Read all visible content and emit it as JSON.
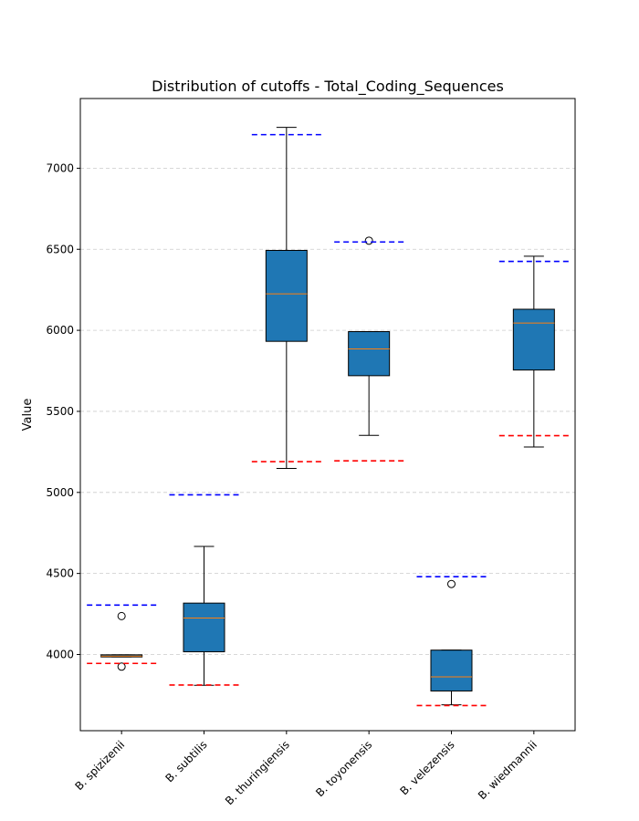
{
  "chart_data": {
    "type": "boxplot",
    "title": "Distribution of cutoffs - Total_Coding_Sequences",
    "xlabel": "",
    "ylabel": "Value",
    "ylim": [
      3530,
      7430
    ],
    "yticks": [
      4000,
      4500,
      5000,
      5500,
      6000,
      6500,
      7000
    ],
    "grid": "y-dashed",
    "colors": {
      "box_fill": "#1f77b4",
      "median": "#ff7f0e",
      "upper_cutoff": "#0000ff",
      "lower_cutoff": "#ff0000",
      "grid": "#cccccc"
    },
    "categories": [
      "B. spizizenii",
      "B. subtilis",
      "B. thuringiensis",
      "B. toyonensis",
      "B. velezensis",
      "B. wiedmannii"
    ],
    "boxes": [
      {
        "q1": 3985,
        "median": 3990,
        "q3": 3998,
        "whisker_low": 3985,
        "whisker_high": 3998,
        "outliers": [
          4237,
          3925
        ],
        "upper_cutoff": 4305,
        "lower_cutoff": 3945
      },
      {
        "q1": 4017,
        "median": 4225,
        "q3": 4317,
        "whisker_low": 3810,
        "whisker_high": 4667,
        "outliers": [],
        "upper_cutoff": 4985,
        "lower_cutoff": 3812
      },
      {
        "q1": 5932,
        "median": 6225,
        "q3": 6493,
        "whisker_low": 5148,
        "whisker_high": 7252,
        "outliers": [],
        "upper_cutoff": 7207,
        "lower_cutoff": 5190
      },
      {
        "q1": 5720,
        "median": 5885,
        "q3": 5992,
        "whisker_low": 5352,
        "whisker_high": 5992,
        "outliers": [
          6553
        ],
        "upper_cutoff": 6545,
        "lower_cutoff": 5195
      },
      {
        "q1": 3775,
        "median": 3862,
        "q3": 4027,
        "whisker_low": 3690,
        "whisker_high": 4027,
        "outliers": [
          4435
        ],
        "upper_cutoff": 4480,
        "lower_cutoff": 3685
      },
      {
        "q1": 5755,
        "median": 6045,
        "q3": 6130,
        "whisker_low": 5280,
        "whisker_high": 6457,
        "outliers": [],
        "upper_cutoff": 6425,
        "lower_cutoff": 5350
      }
    ]
  }
}
